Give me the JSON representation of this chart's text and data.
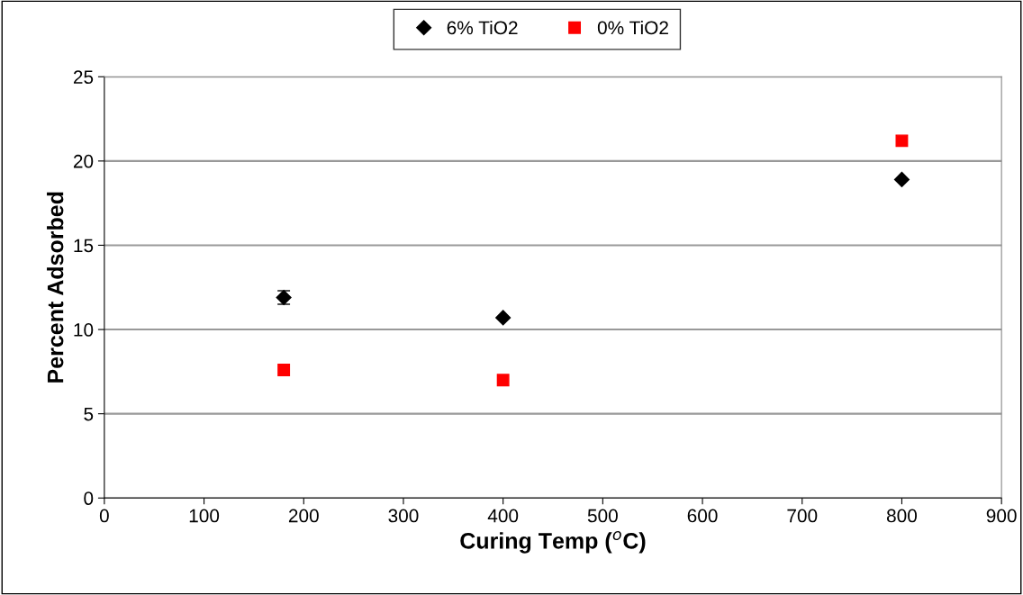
{
  "chart_data": {
    "type": "scatter",
    "xlabel": "Curing Temp ($^{o}$C)",
    "ylabel": "Percent Adsorbed",
    "xlim": [
      0,
      900
    ],
    "xticks": [
      0,
      100,
      200,
      300,
      400,
      500,
      600,
      700,
      800,
      900
    ],
    "ylim": [
      0,
      25
    ],
    "yticks": [
      0,
      5,
      10,
      15,
      20,
      25
    ],
    "grid": "y",
    "legend": "top",
    "series": [
      {
        "name": "6% TiO2",
        "color": "#000000",
        "marker": "diamond",
        "x": [
          180,
          400,
          800
        ],
        "values": [
          11.9,
          10.7,
          18.9
        ],
        "errors": [
          0.4,
          null,
          null
        ]
      },
      {
        "name": "0% TiO2",
        "color": "#ff0000",
        "marker": "square",
        "x": [
          180,
          400,
          800
        ],
        "values": [
          7.6,
          7.0,
          21.2
        ]
      }
    ]
  }
}
